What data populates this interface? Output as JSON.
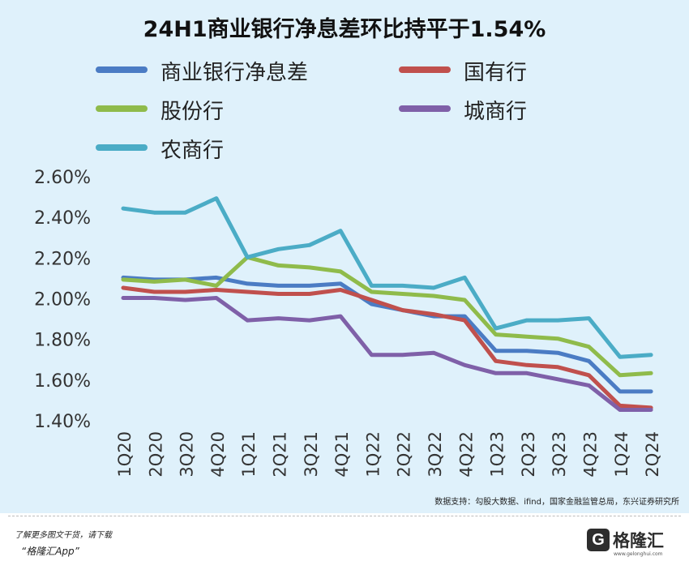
{
  "chart_data": {
    "type": "line",
    "title": "24H1商业银行净息差环比持平于1.54%",
    "categories": [
      "1Q20",
      "2Q20",
      "3Q20",
      "4Q20",
      "1Q21",
      "2Q21",
      "3Q21",
      "4Q21",
      "1Q22",
      "2Q22",
      "3Q22",
      "4Q22",
      "1Q23",
      "2Q23",
      "3Q23",
      "4Q23",
      "1Q24",
      "2Q24"
    ],
    "y_ticks": [
      "2.60%",
      "2.40%",
      "2.20%",
      "2.00%",
      "1.80%",
      "1.60%",
      "1.40%"
    ],
    "ylim": [
      1.4,
      2.6
    ],
    "y_unit": "%",
    "grid": false,
    "legend_position": "top",
    "series": [
      {
        "name": "商业银行净息差",
        "color": "#4b7cc4",
        "values": [
          2.1,
          2.09,
          2.09,
          2.1,
          2.07,
          2.06,
          2.06,
          2.07,
          1.97,
          1.94,
          1.91,
          1.91,
          1.74,
          1.74,
          1.73,
          1.69,
          1.54,
          1.54
        ]
      },
      {
        "name": "国有行",
        "color": "#c0504d",
        "values": [
          2.05,
          2.03,
          2.03,
          2.04,
          2.03,
          2.02,
          2.02,
          2.04,
          1.99,
          1.94,
          1.92,
          1.89,
          1.69,
          1.67,
          1.66,
          1.62,
          1.47,
          1.46
        ]
      },
      {
        "name": "股份行",
        "color": "#8fbb4b",
        "values": [
          2.09,
          2.08,
          2.09,
          2.06,
          2.2,
          2.16,
          2.15,
          2.13,
          2.03,
          2.02,
          2.01,
          1.99,
          1.82,
          1.81,
          1.8,
          1.76,
          1.62,
          1.63
        ]
      },
      {
        "name": "城商行",
        "color": "#7f60a8",
        "values": [
          2.0,
          2.0,
          1.99,
          2.0,
          1.89,
          1.9,
          1.89,
          1.91,
          1.72,
          1.72,
          1.73,
          1.67,
          1.63,
          1.63,
          1.6,
          1.57,
          1.45,
          1.45
        ]
      },
      {
        "name": "农商行",
        "color": "#4bacc6",
        "values": [
          2.44,
          2.42,
          2.42,
          2.49,
          2.2,
          2.24,
          2.26,
          2.33,
          2.06,
          2.06,
          2.05,
          2.1,
          1.85,
          1.89,
          1.89,
          1.9,
          1.71,
          1.72
        ]
      }
    ]
  },
  "source": "数据支持：勾股大数据、ifind，国家金融监管总局，东兴证券研究所",
  "footer": {
    "note1": "了解更多图文干货，请下载",
    "note2": "“格隆汇App”"
  },
  "brand": {
    "logo_letter": "G",
    "name": "格隆汇",
    "url": "www.gelonghui.com"
  }
}
